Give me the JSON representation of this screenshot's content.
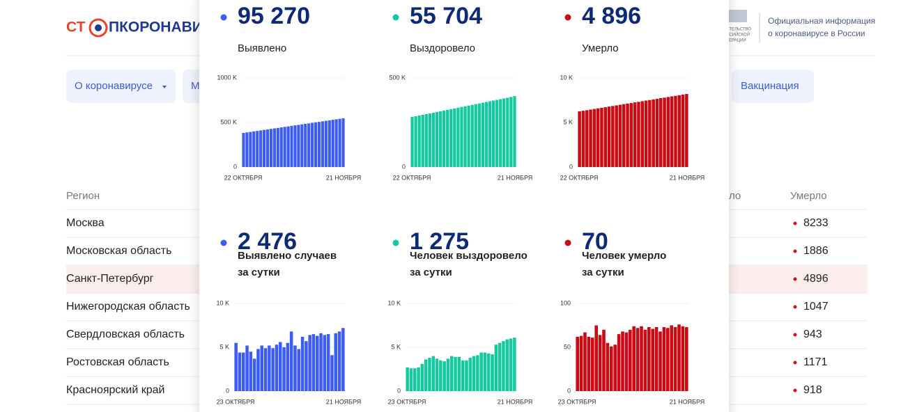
{
  "header": {
    "logo_left": "СТ",
    "logo_right": "ПКОРОНАВИ",
    "emblem_lines": [
      "ИТЕЛЬСТВО",
      "ССИЙСКОЙ",
      "ДЕРАЦИИ"
    ],
    "info_lines": [
      "Официальная информация",
      "о коронавирусе в России"
    ]
  },
  "nav": {
    "items": [
      "О коронавирусе",
      "М",
      "Вакцинация"
    ]
  },
  "table": {
    "headers": [
      "Регион",
      "ло",
      "Умерло"
    ],
    "highlight_row": 2,
    "rows": [
      [
        "Москва",
        "8233"
      ],
      [
        "Московская область",
        "1886"
      ],
      [
        "Санкт-Петербург",
        "4896"
      ],
      [
        "Нижегородская область",
        "1047"
      ],
      [
        "Свердловская область",
        "943"
      ],
      [
        "Ростовская область",
        "1171"
      ],
      [
        "Красноярский край",
        "918"
      ]
    ]
  },
  "popup": {
    "charts": [
      {
        "type": "bar",
        "value": "95 270",
        "label": [
          "Выявлено"
        ],
        "color": "#3d5cf5",
        "ylim": [
          0,
          1000000
        ],
        "yticks": [
          0,
          {
            "value": 500000,
            "label": "500 K"
          },
          {
            "value": 1000000,
            "label": "1000 K"
          }
        ],
        "x_labels": [
          "22 ОКТЯБРЯ",
          "21 НОЯБРЯ"
        ],
        "values": [
          383000,
          389000,
          394000,
          400000,
          405000,
          411000,
          417000,
          422000,
          428000,
          434000,
          439000,
          445000,
          451000,
          456000,
          462000,
          468000,
          473000,
          479000,
          485000,
          490000,
          496000,
          502000,
          507000,
          513000,
          519000,
          524000,
          530000,
          536000,
          541000,
          547000
        ]
      },
      {
        "type": "bar",
        "value": "55 704",
        "label": [
          "Выздоровело"
        ],
        "color": "#14c9a0",
        "ylim": [
          0,
          500000
        ],
        "yticks": [
          0,
          {
            "value": 500000,
            "label": "500 K"
          }
        ],
        "x_labels": [
          "22 ОКТЯБРЯ",
          "21 НОЯБРЯ"
        ],
        "values": [
          281000,
          285000,
          289000,
          293000,
          297000,
          301000,
          305000,
          309000,
          313000,
          317000,
          321000,
          325000,
          329000,
          333000,
          337000,
          341000,
          345000,
          349000,
          353000,
          357000,
          361000,
          365000,
          369000,
          373000,
          377000,
          381000,
          385000,
          389000,
          393000,
          398000
        ]
      },
      {
        "type": "bar",
        "value": "4 896",
        "label": [
          "Умерло"
        ],
        "color": "#cc0a14",
        "ylim": [
          0,
          10000
        ],
        "yticks": [
          0,
          {
            "value": 5000,
            "label": "5 K"
          },
          {
            "value": 10000,
            "label": "10 K"
          }
        ],
        "x_labels": [
          "22 ОКТЯБРЯ",
          "21 НОЯБРЯ"
        ],
        "values": [
          6250,
          6320,
          6380,
          6450,
          6520,
          6590,
          6650,
          6720,
          6790,
          6850,
          6920,
          6990,
          7060,
          7120,
          7190,
          7260,
          7320,
          7390,
          7460,
          7520,
          7590,
          7660,
          7730,
          7790,
          7860,
          7930,
          7990,
          8060,
          8130,
          8200
        ]
      },
      {
        "type": "bar",
        "value": "2 476",
        "label": [
          "Выявлено случаев",
          "за сутки"
        ],
        "color": "#3d5cf5",
        "ylim": [
          0,
          10000
        ],
        "yticks": [
          0,
          {
            "value": 5000,
            "label": "5 K"
          },
          {
            "value": 10000,
            "label": "10 K"
          }
        ],
        "x_labels": [
          "23 ОКТЯБРЯ",
          "21 НОЯБРЯ"
        ],
        "values": [
          5500,
          4400,
          4400,
          5200,
          4500,
          3700,
          4800,
          5200,
          4900,
          5200,
          4900,
          5300,
          5600,
          5000,
          5500,
          6800,
          5200,
          4800,
          6200,
          5700,
          6400,
          6500,
          6300,
          6600,
          6400,
          6500,
          4100,
          6600,
          6800,
          7200
        ]
      },
      {
        "type": "bar",
        "value": "1 275",
        "label": [
          "Человек выздоровело",
          "за сутки"
        ],
        "color": "#14c9a0",
        "ylim": [
          0,
          10000
        ],
        "yticks": [
          0,
          {
            "value": 5000,
            "label": "5 K"
          },
          {
            "value": 10000,
            "label": "10 K"
          }
        ],
        "x_labels": [
          "23 ОКТЯБРЯ",
          "21 НОЯБРЯ"
        ],
        "values": [
          2700,
          2600,
          2600,
          2700,
          3100,
          3600,
          3800,
          4000,
          3700,
          3500,
          3400,
          3700,
          4000,
          3900,
          3900,
          3500,
          3500,
          3800,
          4000,
          4100,
          4400,
          4400,
          4300,
          4200,
          5300,
          5500,
          5700,
          5900,
          6000,
          6100
        ]
      },
      {
        "type": "bar",
        "value": "70",
        "label": [
          "Человек умерло",
          "за сутки"
        ],
        "color": "#cc0a14",
        "ylim": [
          0,
          100
        ],
        "yticks": [
          0,
          50,
          100
        ],
        "x_labels": [
          "23 ОКТЯБРЯ",
          "21 НОЯБРЯ"
        ],
        "values": [
          62,
          63,
          67,
          62,
          61,
          75,
          64,
          70,
          55,
          51,
          53,
          65,
          68,
          67,
          70,
          74,
          72,
          74,
          70,
          73,
          71,
          73,
          68,
          73,
          72,
          75,
          73,
          76,
          74,
          73
        ]
      }
    ]
  }
}
